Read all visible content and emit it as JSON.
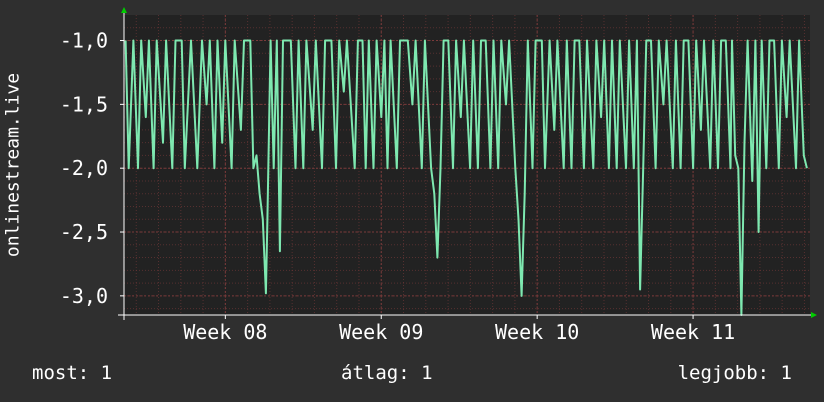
{
  "chart_data": {
    "type": "line",
    "ylabel": "onlinestream.live",
    "ylim": [
      -3.15,
      -0.8
    ],
    "yticks": [
      -1.0,
      -1.5,
      -2.0,
      -2.5,
      -3.0
    ],
    "ytick_labels": [
      "-1,0",
      "-1,5",
      "-2,0",
      "-2,5",
      "-3,0"
    ],
    "xtick_labels": [
      "Week 08",
      "Week 09",
      "Week 10",
      "Week 11"
    ],
    "xtick_positions": [
      8,
      9,
      10,
      11
    ],
    "xlim": [
      7.35,
      11.75
    ],
    "grid": true,
    "colors": {
      "background": "#2f2f2f",
      "plot": "#222222",
      "grid": "#7a3a3a",
      "line": "#7ee8b0",
      "arrow": "#00cc00"
    },
    "series": [
      {
        "values": [
          [
            7.36,
            -1.0
          ],
          [
            7.38,
            -2.0
          ],
          [
            7.41,
            -1.0
          ],
          [
            7.44,
            -2.0
          ],
          [
            7.46,
            -1.0
          ],
          [
            7.49,
            -1.6
          ],
          [
            7.51,
            -1.0
          ],
          [
            7.54,
            -2.0
          ],
          [
            7.56,
            -1.0
          ],
          [
            7.6,
            -1.8
          ],
          [
            7.62,
            -1.0
          ],
          [
            7.66,
            -2.0
          ],
          [
            7.68,
            -1.0
          ],
          [
            7.72,
            -1.0
          ],
          [
            7.74,
            -2.0
          ],
          [
            7.78,
            -1.0
          ],
          [
            7.82,
            -2.0
          ],
          [
            7.85,
            -1.0
          ],
          [
            7.88,
            -1.5
          ],
          [
            7.9,
            -1.0
          ],
          [
            7.93,
            -2.0
          ],
          [
            7.95,
            -1.0
          ],
          [
            7.98,
            -1.8
          ],
          [
            8.0,
            -1.0
          ],
          [
            8.04,
            -2.0
          ],
          [
            8.06,
            -1.0
          ],
          [
            8.1,
            -1.7
          ],
          [
            8.12,
            -1.0
          ],
          [
            8.16,
            -1.0
          ],
          [
            8.18,
            -2.0
          ],
          [
            8.2,
            -1.9
          ],
          [
            8.22,
            -2.2
          ],
          [
            8.24,
            -2.4
          ],
          [
            8.26,
            -2.98
          ],
          [
            8.27,
            -2.4
          ],
          [
            8.29,
            -1.0
          ],
          [
            8.31,
            -2.0
          ],
          [
            8.33,
            -1.0
          ],
          [
            8.35,
            -2.65
          ],
          [
            8.37,
            -1.0
          ],
          [
            8.42,
            -1.0
          ],
          [
            8.45,
            -2.0
          ],
          [
            8.47,
            -1.0
          ],
          [
            8.5,
            -2.0
          ],
          [
            8.52,
            -1.0
          ],
          [
            8.56,
            -1.7
          ],
          [
            8.58,
            -1.0
          ],
          [
            8.62,
            -2.0
          ],
          [
            8.64,
            -1.0
          ],
          [
            8.68,
            -1.0
          ],
          [
            8.71,
            -2.0
          ],
          [
            8.73,
            -1.0
          ],
          [
            8.76,
            -1.4
          ],
          [
            8.78,
            -1.0
          ],
          [
            8.83,
            -2.0
          ],
          [
            8.85,
            -1.0
          ],
          [
            8.88,
            -1.0
          ],
          [
            8.9,
            -2.0
          ],
          [
            8.92,
            -1.0
          ],
          [
            8.95,
            -2.0
          ],
          [
            8.97,
            -1.0
          ],
          [
            9.0,
            -1.6
          ],
          [
            9.02,
            -1.0
          ],
          [
            9.04,
            -2.0
          ],
          [
            9.06,
            -1.0
          ],
          [
            9.1,
            -2.0
          ],
          [
            9.12,
            -1.0
          ],
          [
            9.15,
            -1.0
          ],
          [
            9.17,
            -1.0
          ],
          [
            9.2,
            -1.5
          ],
          [
            9.22,
            -1.0
          ],
          [
            9.26,
            -2.0
          ],
          [
            9.28,
            -1.0
          ],
          [
            9.32,
            -2.0
          ],
          [
            9.34,
            -2.2
          ],
          [
            9.36,
            -2.7
          ],
          [
            9.38,
            -2.0
          ],
          [
            9.4,
            -1.0
          ],
          [
            9.43,
            -1.0
          ],
          [
            9.46,
            -2.0
          ],
          [
            9.48,
            -1.0
          ],
          [
            9.51,
            -1.6
          ],
          [
            9.53,
            -1.0
          ],
          [
            9.57,
            -2.0
          ],
          [
            9.59,
            -1.0
          ],
          [
            9.62,
            -2.0
          ],
          [
            9.64,
            -1.0
          ],
          [
            9.67,
            -1.0
          ],
          [
            9.7,
            -2.0
          ],
          [
            9.72,
            -1.0
          ],
          [
            9.75,
            -2.0
          ],
          [
            9.77,
            -1.0
          ],
          [
            9.8,
            -1.5
          ],
          [
            9.82,
            -1.0
          ],
          [
            9.86,
            -2.0
          ],
          [
            9.88,
            -2.4
          ],
          [
            9.9,
            -3.0
          ],
          [
            9.92,
            -2.2
          ],
          [
            9.94,
            -1.0
          ],
          [
            9.97,
            -2.0
          ],
          [
            9.99,
            -1.0
          ],
          [
            10.03,
            -1.0
          ],
          [
            10.05,
            -2.0
          ],
          [
            10.08,
            -1.0
          ],
          [
            10.11,
            -1.7
          ],
          [
            10.13,
            -1.0
          ],
          [
            10.17,
            -2.0
          ],
          [
            10.19,
            -1.0
          ],
          [
            10.22,
            -2.0
          ],
          [
            10.24,
            -1.0
          ],
          [
            10.27,
            -1.0
          ],
          [
            10.3,
            -2.0
          ],
          [
            10.32,
            -1.0
          ],
          [
            10.36,
            -2.0
          ],
          [
            10.38,
            -1.0
          ],
          [
            10.41,
            -1.6
          ],
          [
            10.43,
            -1.0
          ],
          [
            10.46,
            -2.0
          ],
          [
            10.48,
            -1.0
          ],
          [
            10.51,
            -2.0
          ],
          [
            10.53,
            -1.0
          ],
          [
            10.57,
            -2.0
          ],
          [
            10.59,
            -1.0
          ],
          [
            10.62,
            -2.0
          ],
          [
            10.64,
            -1.0
          ],
          [
            10.66,
            -2.95
          ],
          [
            10.68,
            -2.0
          ],
          [
            10.7,
            -1.0
          ],
          [
            10.73,
            -1.0
          ],
          [
            10.76,
            -2.0
          ],
          [
            10.78,
            -1.0
          ],
          [
            10.81,
            -1.5
          ],
          [
            10.83,
            -1.0
          ],
          [
            10.87,
            -2.0
          ],
          [
            10.89,
            -1.0
          ],
          [
            10.92,
            -2.0
          ],
          [
            10.94,
            -1.0
          ],
          [
            10.97,
            -1.0
          ],
          [
            11.0,
            -2.0
          ],
          [
            11.02,
            -1.0
          ],
          [
            11.05,
            -1.7
          ],
          [
            11.07,
            -1.0
          ],
          [
            11.11,
            -2.0
          ],
          [
            11.13,
            -1.0
          ],
          [
            11.16,
            -2.0
          ],
          [
            11.18,
            -1.0
          ],
          [
            11.21,
            -1.0
          ],
          [
            11.24,
            -2.0
          ],
          [
            11.25,
            -1.0
          ],
          [
            11.27,
            -1.9
          ],
          [
            11.29,
            -2.0
          ],
          [
            11.31,
            -3.15
          ],
          [
            11.33,
            -1.8
          ],
          [
            11.35,
            -1.0
          ],
          [
            11.38,
            -2.1
          ],
          [
            11.4,
            -1.0
          ],
          [
            11.42,
            -2.5
          ],
          [
            11.44,
            -1.0
          ],
          [
            11.47,
            -2.0
          ],
          [
            11.49,
            -1.0
          ],
          [
            11.52,
            -1.0
          ],
          [
            11.55,
            -2.0
          ],
          [
            11.57,
            -1.0
          ],
          [
            11.6,
            -1.6
          ],
          [
            11.62,
            -1.0
          ],
          [
            11.66,
            -2.0
          ],
          [
            11.68,
            -1.0
          ],
          [
            11.71,
            -1.9
          ],
          [
            11.73,
            -2.0
          ]
        ]
      }
    ]
  },
  "stats": {
    "now_label": "most:",
    "now_value": "1",
    "avg_label": "átlag:",
    "avg_value": "1",
    "best_label": "legjobb:",
    "best_value": "1"
  }
}
